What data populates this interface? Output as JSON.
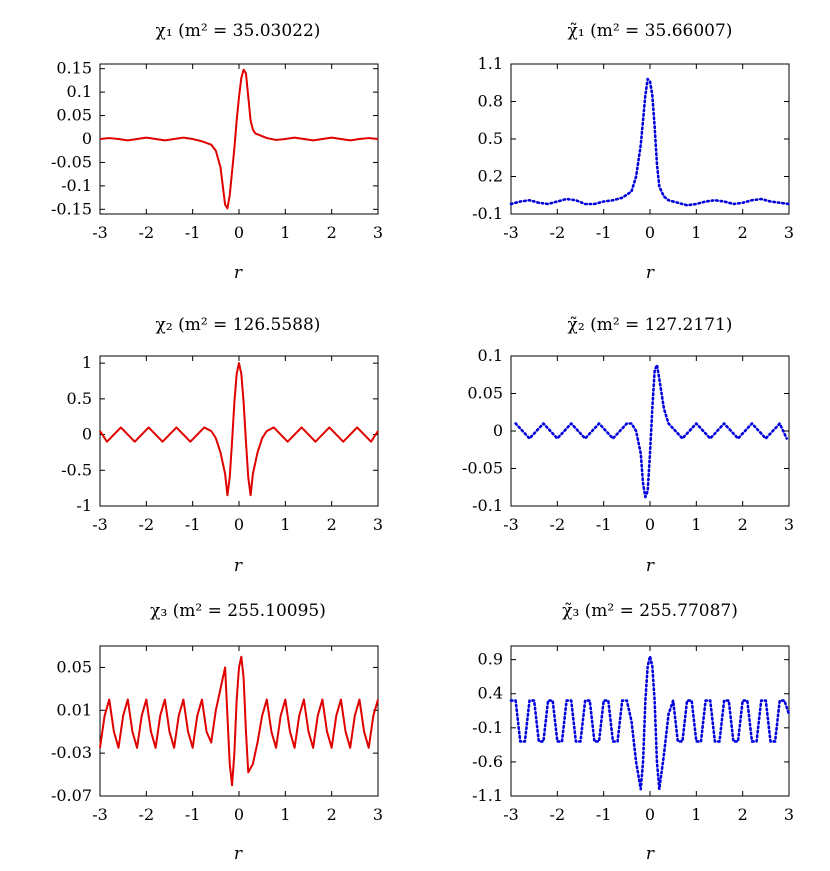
{
  "chart_data": [
    {
      "type": "line",
      "title": "χ₁ (m² = 35.03022)",
      "xlabel": "r",
      "ylabel": "",
      "xlim": [
        -3,
        3
      ],
      "ylim": [
        -0.16,
        0.16
      ],
      "xticks": [
        "-3",
        "-2",
        "-1",
        "0",
        "1",
        "2",
        "3"
      ],
      "xtick_values": [
        -3,
        -2,
        -1,
        0,
        1,
        2,
        3
      ],
      "yticks": [
        "0.15",
        "0.1",
        "0.05",
        "0",
        "-0.05",
        "-0.1",
        "-0.15"
      ],
      "ytick_values": [
        0.15,
        0.1,
        0.05,
        0,
        -0.05,
        -0.1,
        -0.15
      ],
      "series": [
        {
          "color": "#e00000",
          "style": "solid",
          "x": [
            -3,
            -2.8,
            -2.6,
            -2.4,
            -2.2,
            -2,
            -1.8,
            -1.6,
            -1.4,
            -1.2,
            -1,
            -0.8,
            -0.6,
            -0.5,
            -0.4,
            -0.35,
            -0.3,
            -0.25,
            -0.2,
            -0.15,
            -0.1,
            -0.05,
            0,
            0.05,
            0.1,
            0.15,
            0.2,
            0.25,
            0.3,
            0.35,
            0.4,
            0.5,
            0.6,
            0.8,
            1,
            1.2,
            1.4,
            1.6,
            1.8,
            2,
            2.2,
            2.4,
            2.6,
            2.8,
            3
          ],
          "y": [
            0,
            0.002,
            0,
            -0.003,
            0,
            0.003,
            0,
            -0.003,
            0,
            0.003,
            0,
            -0.005,
            -0.012,
            -0.025,
            -0.06,
            -0.1,
            -0.14,
            -0.148,
            -0.12,
            -0.07,
            -0.02,
            0.04,
            0.09,
            0.13,
            0.148,
            0.14,
            0.09,
            0.04,
            0.02,
            0.012,
            0.01,
            0.006,
            0.002,
            -0.002,
            0,
            0.003,
            0,
            -0.003,
            0,
            0.003,
            0,
            -0.003,
            0,
            0.002,
            0
          ]
        }
      ]
    },
    {
      "type": "line",
      "title": "χ̃₁ (m² = 35.66007)",
      "xlabel": "r",
      "ylabel": "",
      "xlim": [
        -3,
        3
      ],
      "ylim": [
        -0.1,
        1.1
      ],
      "xticks": [
        "-3",
        "-2",
        "-1",
        "0",
        "1",
        "2",
        "3"
      ],
      "xtick_values": [
        -3,
        -2,
        -1,
        0,
        1,
        2,
        3
      ],
      "yticks": [
        "1.1",
        "0.8",
        "0.5",
        "0.2",
        "-0.1"
      ],
      "ytick_values": [
        1.1,
        0.8,
        0.5,
        0.2,
        -0.1
      ],
      "series": [
        {
          "color": "#0000dd",
          "style": "dotted",
          "x": [
            -3,
            -2.8,
            -2.6,
            -2.4,
            -2.2,
            -2,
            -1.8,
            -1.6,
            -1.4,
            -1.2,
            -1,
            -0.8,
            -0.6,
            -0.4,
            -0.3,
            -0.2,
            -0.15,
            -0.1,
            -0.05,
            0,
            0.05,
            0.1,
            0.15,
            0.2,
            0.3,
            0.4,
            0.6,
            0.8,
            1,
            1.2,
            1.4,
            1.6,
            1.8,
            2,
            2.2,
            2.4,
            2.6,
            2.8,
            3
          ],
          "y": [
            -0.02,
            0,
            0.01,
            -0.01,
            -0.02,
            0,
            0.02,
            0.01,
            -0.02,
            -0.02,
            0,
            0.01,
            0.03,
            0.08,
            0.2,
            0.45,
            0.65,
            0.85,
            0.98,
            0.96,
            0.85,
            0.6,
            0.3,
            0.12,
            0.04,
            0.01,
            -0.01,
            -0.03,
            -0.02,
            0,
            0.01,
            0,
            -0.02,
            -0.01,
            0.01,
            0.02,
            0,
            -0.01,
            -0.02
          ]
        }
      ]
    },
    {
      "type": "line",
      "title": "χ₂ (m² = 126.5588)",
      "xlabel": "r",
      "ylabel": "",
      "xlim": [
        -3,
        3
      ],
      "ylim": [
        -1,
        1.1
      ],
      "xticks": [
        "-3",
        "-2",
        "-1",
        "0",
        "1",
        "2",
        "3"
      ],
      "xtick_values": [
        -3,
        -2,
        -1,
        0,
        1,
        2,
        3
      ],
      "yticks": [
        "1",
        "0.5",
        "0",
        "-0.5",
        "-1"
      ],
      "ytick_values": [
        1,
        0.5,
        0,
        -0.5,
        -1
      ],
      "series": [
        {
          "color": "#e00000",
          "style": "solid",
          "x": [
            -3,
            -2.85,
            -2.7,
            -2.55,
            -2.4,
            -2.25,
            -2.1,
            -1.95,
            -1.8,
            -1.65,
            -1.5,
            -1.35,
            -1.2,
            -1.05,
            -0.9,
            -0.75,
            -0.6,
            -0.5,
            -0.4,
            -0.3,
            -0.25,
            -0.2,
            -0.15,
            -0.1,
            -0.05,
            0,
            0.05,
            0.1,
            0.15,
            0.2,
            0.25,
            0.3,
            0.4,
            0.5,
            0.6,
            0.75,
            0.9,
            1.05,
            1.2,
            1.35,
            1.5,
            1.65,
            1.8,
            1.95,
            2.1,
            2.25,
            2.4,
            2.55,
            2.7,
            2.85,
            3
          ],
          "y": [
            0.05,
            -0.1,
            0.0,
            0.1,
            0.0,
            -0.1,
            0.0,
            0.1,
            0.0,
            -0.1,
            0.0,
            0.1,
            0.0,
            -0.1,
            0.0,
            0.1,
            0.05,
            -0.05,
            -0.25,
            -0.55,
            -0.85,
            -0.6,
            -0.1,
            0.45,
            0.85,
            1.0,
            0.85,
            0.45,
            -0.1,
            -0.6,
            -0.85,
            -0.55,
            -0.25,
            -0.05,
            0.05,
            0.1,
            0.0,
            -0.1,
            0.0,
            0.1,
            0.0,
            -0.1,
            0.0,
            0.1,
            0.0,
            -0.1,
            0.0,
            0.1,
            0.0,
            -0.1,
            0.05
          ]
        }
      ]
    },
    {
      "type": "line",
      "title": "χ̃₂ (m² = 127.2171)",
      "xlabel": "r",
      "ylabel": "",
      "xlim": [
        -3,
        3
      ],
      "ylim": [
        -0.1,
        0.1
      ],
      "xticks": [
        "-3",
        "-2",
        "-1",
        "0",
        "1",
        "2",
        "3"
      ],
      "xtick_values": [
        -3,
        -2,
        -1,
        0,
        1,
        2,
        3
      ],
      "yticks": [
        "0.1",
        "0.05",
        "0",
        "-0.05",
        "-0.1"
      ],
      "ytick_values": [
        0.1,
        0.05,
        0,
        -0.05,
        -0.1
      ],
      "series": [
        {
          "color": "#0000dd",
          "style": "dotted",
          "x": [
            -2.9,
            -2.75,
            -2.6,
            -2.45,
            -2.3,
            -2.15,
            -2,
            -1.85,
            -1.7,
            -1.55,
            -1.4,
            -1.25,
            -1.1,
            -0.95,
            -0.8,
            -0.65,
            -0.5,
            -0.4,
            -0.3,
            -0.2,
            -0.15,
            -0.1,
            -0.05,
            0,
            0.05,
            0.1,
            0.15,
            0.2,
            0.3,
            0.4,
            0.55,
            0.7,
            0.85,
            1,
            1.15,
            1.3,
            1.45,
            1.6,
            1.75,
            1.9,
            2.05,
            2.2,
            2.35,
            2.5,
            2.65,
            2.8,
            2.95
          ],
          "y": [
            0.01,
            0.0,
            -0.01,
            0.0,
            0.01,
            0.0,
            -0.01,
            0.0,
            0.01,
            0.0,
            -0.01,
            0.0,
            0.01,
            0.0,
            -0.01,
            0.0,
            0.01,
            0.01,
            0.0,
            -0.03,
            -0.07,
            -0.088,
            -0.08,
            -0.03,
            0.03,
            0.08,
            0.088,
            0.07,
            0.03,
            0.01,
            0.0,
            -0.01,
            0.0,
            0.01,
            0.0,
            -0.01,
            0.0,
            0.01,
            0.0,
            -0.01,
            0.0,
            0.01,
            0.0,
            -0.01,
            0.0,
            0.01,
            -0.01
          ]
        }
      ]
    },
    {
      "type": "line",
      "title": "χ₃ (m² = 255.10095)",
      "xlabel": "r",
      "ylabel": "",
      "xlim": [
        -3,
        3
      ],
      "ylim": [
        -0.07,
        0.07
      ],
      "xticks": [
        "-3",
        "-2",
        "-1",
        "0",
        "1",
        "2",
        "3"
      ],
      "xtick_values": [
        -3,
        -2,
        -1,
        0,
        1,
        2,
        3
      ],
      "yticks": [
        "0.05",
        "0.01",
        "-0.03",
        "-0.07"
      ],
      "ytick_values": [
        0.05,
        0.01,
        -0.03,
        -0.07
      ],
      "series": [
        {
          "color": "#e00000",
          "style": "solid",
          "x": [
            -3,
            -2.9,
            -2.8,
            -2.7,
            -2.6,
            -2.5,
            -2.4,
            -2.3,
            -2.2,
            -2.1,
            -2,
            -1.9,
            -1.8,
            -1.7,
            -1.6,
            -1.5,
            -1.4,
            -1.3,
            -1.2,
            -1.1,
            -1,
            -0.9,
            -0.8,
            -0.7,
            -0.6,
            -0.5,
            -0.4,
            -0.3,
            -0.2,
            -0.15,
            -0.1,
            -0.05,
            0,
            0.05,
            0.1,
            0.15,
            0.2,
            0.3,
            0.4,
            0.5,
            0.6,
            0.7,
            0.8,
            0.9,
            1,
            1.1,
            1.2,
            1.3,
            1.4,
            1.5,
            1.6,
            1.7,
            1.8,
            1.9,
            2,
            2.1,
            2.2,
            2.3,
            2.4,
            2.5,
            2.6,
            2.7,
            2.8,
            2.9,
            3
          ],
          "y": [
            -0.025,
            0.005,
            0.02,
            -0.01,
            -0.025,
            0.005,
            0.02,
            -0.01,
            -0.025,
            0.005,
            0.02,
            -0.01,
            -0.025,
            0.005,
            0.02,
            -0.01,
            -0.025,
            0.005,
            0.02,
            -0.01,
            -0.025,
            0.005,
            0.02,
            -0.01,
            -0.02,
            0.01,
            0.03,
            0.05,
            -0.04,
            -0.06,
            -0.03,
            0.02,
            0.05,
            0.06,
            0.04,
            -0.01,
            -0.048,
            -0.04,
            -0.02,
            0.005,
            0.02,
            -0.01,
            -0.025,
            0.005,
            0.02,
            -0.01,
            -0.025,
            0.005,
            0.02,
            -0.01,
            -0.025,
            0.005,
            0.02,
            -0.01,
            -0.025,
            0.005,
            0.02,
            -0.01,
            -0.025,
            0.005,
            0.02,
            -0.01,
            -0.025,
            0.005,
            0.02
          ]
        }
      ]
    },
    {
      "type": "line",
      "title": "χ̃₃ (m² = 255.77087)",
      "xlabel": "r",
      "ylabel": "",
      "xlim": [
        -3,
        3
      ],
      "ylim": [
        -1.1,
        1.1
      ],
      "xticks": [
        "-3",
        "-2",
        "-1",
        "0",
        "1",
        "2",
        "3"
      ],
      "xtick_values": [
        -3,
        -2,
        -1,
        0,
        1,
        2,
        3
      ],
      "yticks": [
        "0.9",
        "0.4",
        "-0.1",
        "-0.6",
        "-1.1"
      ],
      "ytick_values": [
        0.9,
        0.4,
        -0.1,
        -0.6,
        -1.1
      ],
      "series": [
        {
          "color": "#0000dd",
          "style": "dotted",
          "x": [
            -3,
            -2.9,
            -2.8,
            -2.7,
            -2.6,
            -2.5,
            -2.4,
            -2.3,
            -2.2,
            -2.1,
            -2,
            -1.9,
            -1.8,
            -1.7,
            -1.6,
            -1.5,
            -1.4,
            -1.3,
            -1.2,
            -1.1,
            -1,
            -0.9,
            -0.8,
            -0.7,
            -0.6,
            -0.5,
            -0.4,
            -0.3,
            -0.2,
            -0.15,
            -0.1,
            -0.05,
            0,
            0.05,
            0.1,
            0.15,
            0.2,
            0.3,
            0.4,
            0.5,
            0.6,
            0.7,
            0.8,
            0.9,
            1,
            1.1,
            1.2,
            1.3,
            1.4,
            1.5,
            1.6,
            1.7,
            1.8,
            1.9,
            2,
            2.1,
            2.2,
            2.3,
            2.4,
            2.5,
            2.6,
            2.7,
            2.8,
            2.9,
            3
          ],
          "y": [
            0.3,
            0.3,
            -0.3,
            -0.3,
            0.3,
            0.3,
            -0.3,
            -0.3,
            0.3,
            0.3,
            -0.3,
            -0.3,
            0.3,
            0.3,
            -0.3,
            -0.3,
            0.3,
            0.3,
            -0.3,
            -0.3,
            0.3,
            0.3,
            -0.3,
            -0.3,
            0.3,
            0.3,
            0.0,
            -0.6,
            -1.0,
            -0.6,
            0.3,
            0.8,
            0.95,
            0.8,
            0.3,
            -0.6,
            -1.0,
            -0.5,
            0.1,
            0.3,
            -0.3,
            -0.3,
            0.3,
            0.3,
            -0.3,
            -0.3,
            0.3,
            0.3,
            -0.3,
            -0.3,
            0.3,
            0.3,
            -0.3,
            -0.3,
            0.3,
            0.3,
            -0.3,
            -0.3,
            0.3,
            0.3,
            -0.3,
            -0.3,
            0.3,
            0.3,
            0.1
          ]
        }
      ]
    }
  ]
}
